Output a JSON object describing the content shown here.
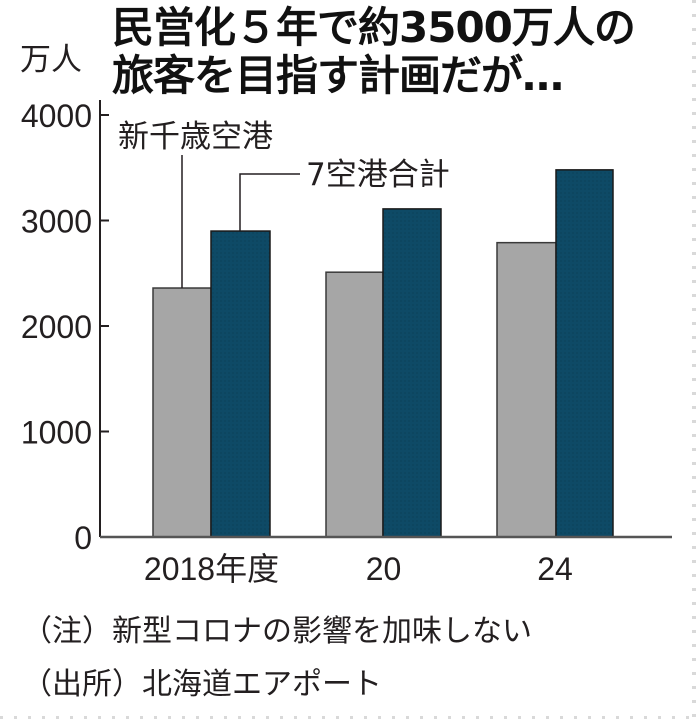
{
  "title": {
    "line1": "民営化５年で約3500万人の",
    "line2": "旅客を目指す計画だが…"
  },
  "unit": "万人",
  "legend": {
    "gray": "新千歳空港",
    "teal": "7空港合計"
  },
  "notes": {
    "note": "（注）新型コロナの影響を加味しない",
    "source": "（出所）北海道エアポート"
  },
  "colors": {
    "gray_bar": "#a6a6a6",
    "teal_bar": "#0e4a66",
    "axis": "#231f20"
  },
  "chart_data": {
    "type": "bar",
    "title": "民営化５年で約3500万人の旅客を目指す計画だが…",
    "xlabel": "",
    "ylabel": "万人",
    "categories": [
      "2018年度",
      "20",
      "24"
    ],
    "series": [
      {
        "name": "新千歳空港",
        "values": [
          2360,
          2510,
          2790
        ]
      },
      {
        "name": "7空港合計",
        "values": [
          2900,
          3110,
          3480
        ]
      }
    ],
    "yticks": [
      0,
      1000,
      2000,
      3000,
      4000
    ],
    "ylim": [
      0,
      4000
    ],
    "grid": false,
    "legend_position": "inline-callouts",
    "annotations": [
      "（注）新型コロナの影響を加味しない",
      "（出所）北海道エアポート"
    ]
  }
}
